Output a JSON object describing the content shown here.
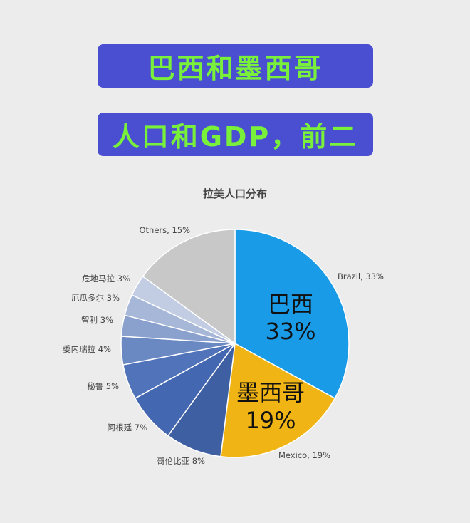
{
  "banners": {
    "line1": "巴西和墨西哥",
    "line2": "人口和GDP，前二"
  },
  "chart_data": {
    "type": "pie",
    "title": "拉美人口分布",
    "slices": [
      {
        "label": "Brazil, 33%",
        "value": 33,
        "color": "#1a9be8",
        "inner": "巴西",
        "inner_pct": "33%"
      },
      {
        "label": "Mexico, 19%",
        "value": 19,
        "color": "#f0b415",
        "inner": "墨西哥",
        "inner_pct": "19%"
      },
      {
        "label": "哥伦比亚 8%",
        "value": 8,
        "color": "#3f5fa3"
      },
      {
        "label": "阿根廷 7%",
        "value": 7,
        "color": "#4367b0"
      },
      {
        "label": "秘鲁 5%",
        "value": 5,
        "color": "#5173ba"
      },
      {
        "label": "委内瑞拉 4%",
        "value": 4,
        "color": "#6a89c3"
      },
      {
        "label": "智利 3%",
        "value": 3,
        "color": "#8aa0cd"
      },
      {
        "label": "厄瓜多尔 3%",
        "value": 3,
        "color": "#a7b7d8"
      },
      {
        "label": "危地马拉 3%",
        "value": 3,
        "color": "#c2cde3"
      },
      {
        "label": "Others, 15%",
        "value": 15,
        "color": "#c8c8c8"
      }
    ]
  }
}
